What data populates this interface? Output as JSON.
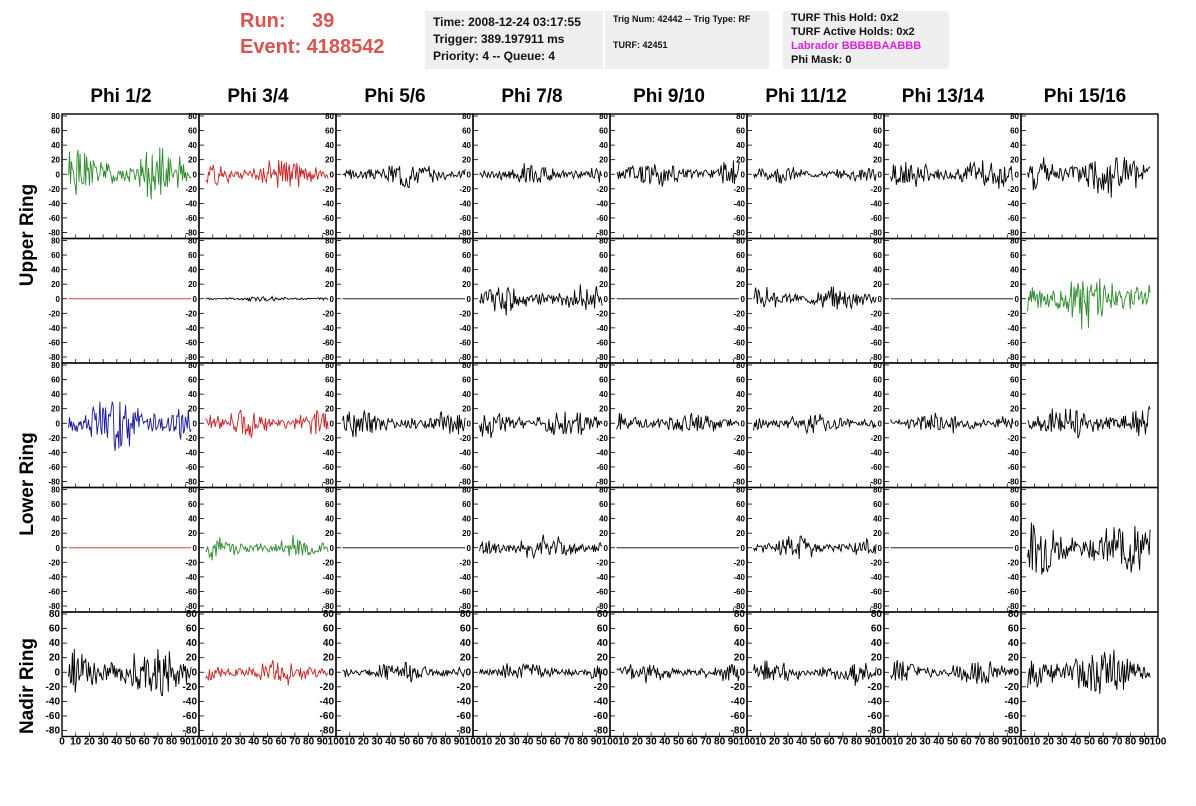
{
  "header": {
    "run_label": "Run:",
    "run_value": "39",
    "event_label": "Event:",
    "event_value": "4188542",
    "time_line": "Time: 2008-12-24 03:17:55",
    "trigger_line": "Trigger: 389.197911 ms",
    "priority_line": "Priority: 4 -- Queue: 4",
    "trig_line": "Trig Num: 42442 -- Trig Type: RF",
    "turf_line": "TURF: 42451",
    "turf_hold_line": "TURF This Hold: 0x2",
    "turf_active_line": "TURF Active Holds: 0x2",
    "labrador_line": "Labrador BBBBBAABBB",
    "phi_mask_line": "Phi Mask: 0",
    "colors": {
      "run": "#d9534f",
      "labrador": "#e020e0",
      "box": "#efefef"
    }
  },
  "columns": [
    "Phi 1/2",
    "Phi 3/4",
    "Phi 5/6",
    "Phi 7/8",
    "Phi 9/10",
    "Phi 11/12",
    "Phi 13/14",
    "Phi 15/16"
  ],
  "row_labels": [
    "Upper Ring",
    "Lower Ring",
    "Nadir Ring"
  ],
  "chart_data": {
    "type": "line",
    "xlim": [
      0,
      100
    ],
    "ylim": [
      -80,
      80
    ],
    "x_ticks": [
      "0",
      "10",
      "20",
      "30",
      "40",
      "50",
      "60",
      "70",
      "80",
      "90",
      "100"
    ],
    "y_ticks": [
      "80",
      "60",
      "40",
      "20",
      "0",
      "-20",
      "-40",
      "-60",
      "-80"
    ],
    "panel_rows": 5,
    "panel_cols": 8,
    "colors": {
      "green": "#2e8b2e",
      "red": "#cc2222",
      "blue": "#1a1aa0",
      "black": "#000000"
    },
    "panels": [
      [
        {
          "c": "green",
          "a": 30,
          "s": 1
        },
        {
          "c": "red",
          "a": 18,
          "s": 2
        },
        {
          "c": "black",
          "a": 16,
          "s": 3
        },
        {
          "c": "black",
          "a": 14,
          "s": 4
        },
        {
          "c": "black",
          "a": 18,
          "s": 5
        },
        {
          "c": "black",
          "a": 10,
          "s": 6
        },
        {
          "c": "black",
          "a": 18,
          "s": 7
        },
        {
          "c": "black",
          "a": 28,
          "s": 8
        }
      ],
      [
        {
          "c": "red",
          "a": 0,
          "s": 9
        },
        {
          "c": "black",
          "a": 3,
          "s": 10
        },
        {
          "c": "black",
          "a": 0,
          "s": 11
        },
        {
          "c": "black",
          "a": 18,
          "s": 12
        },
        {
          "c": "black",
          "a": 0,
          "s": 13
        },
        {
          "c": "black",
          "a": 14,
          "s": 14
        },
        {
          "c": "black",
          "a": 0,
          "s": 15
        },
        {
          "c": "green",
          "a": 34,
          "s": 16
        }
      ],
      [
        {
          "c": "blue",
          "a": 32,
          "s": 17
        },
        {
          "c": "red",
          "a": 18,
          "s": 18
        },
        {
          "c": "black",
          "a": 16,
          "s": 19
        },
        {
          "c": "black",
          "a": 16,
          "s": 20
        },
        {
          "c": "black",
          "a": 14,
          "s": 21
        },
        {
          "c": "black",
          "a": 13,
          "s": 22
        },
        {
          "c": "black",
          "a": 14,
          "s": 23
        },
        {
          "c": "black",
          "a": 20,
          "s": 24
        }
      ],
      [
        {
          "c": "red",
          "a": 0,
          "s": 25
        },
        {
          "c": "green",
          "a": 14,
          "s": 26
        },
        {
          "c": "black",
          "a": 0,
          "s": 27
        },
        {
          "c": "black",
          "a": 16,
          "s": 28
        },
        {
          "c": "black",
          "a": 0,
          "s": 29
        },
        {
          "c": "black",
          "a": 14,
          "s": 30
        },
        {
          "c": "black",
          "a": 0,
          "s": 31
        },
        {
          "c": "black",
          "a": 32,
          "s": 32
        }
      ],
      [
        {
          "c": "black",
          "a": 32,
          "s": 33
        },
        {
          "c": "red",
          "a": 16,
          "s": 34
        },
        {
          "c": "black",
          "a": 12,
          "s": 35
        },
        {
          "c": "black",
          "a": 12,
          "s": 36
        },
        {
          "c": "black",
          "a": 12,
          "s": 37
        },
        {
          "c": "black",
          "a": 14,
          "s": 38
        },
        {
          "c": "black",
          "a": 14,
          "s": 39
        },
        {
          "c": "black",
          "a": 30,
          "s": 40
        }
      ]
    ]
  }
}
